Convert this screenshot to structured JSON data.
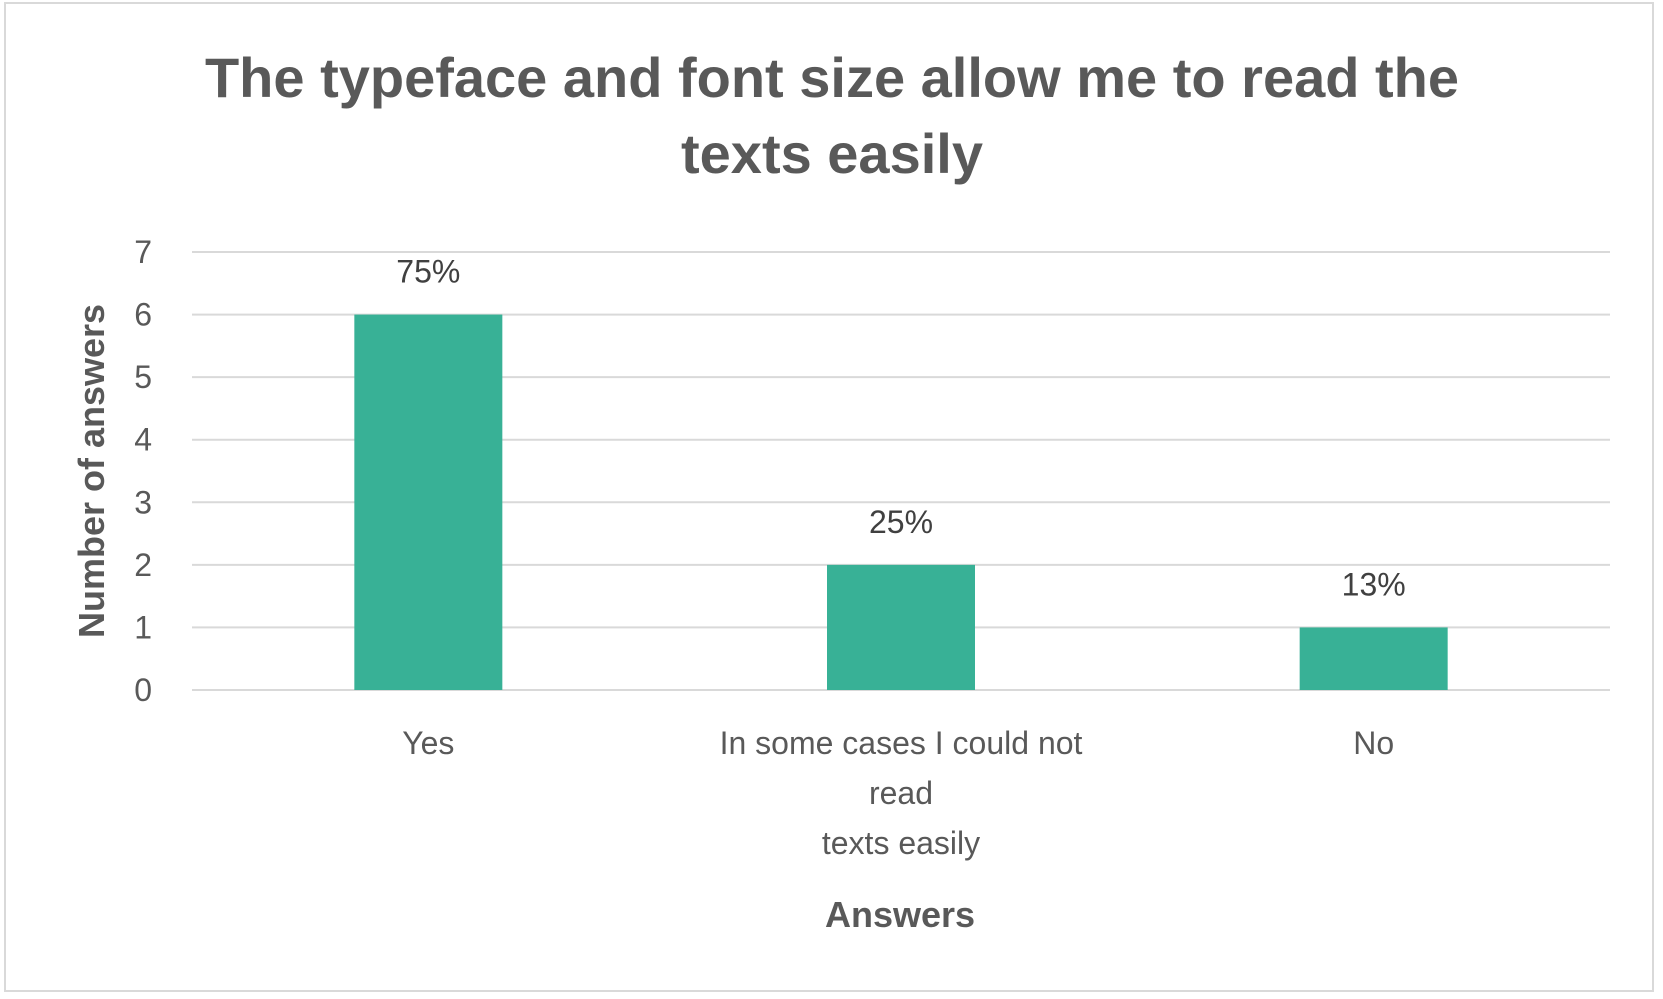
{
  "chart_data": {
    "type": "bar",
    "title": "The typeface and font size allow me to read the texts easily",
    "title_lines": [
      "The typeface and font size allow me to read the",
      "texts easily"
    ],
    "xlabel": "Answers",
    "ylabel": "Number of answers",
    "categories": [
      "Yes",
      "In some cases I could not read texts easily",
      "No"
    ],
    "category_lines": [
      [
        "Yes"
      ],
      [
        "In some cases I could not",
        "read",
        "texts easily"
      ],
      [
        "No"
      ]
    ],
    "values": [
      6,
      2,
      1
    ],
    "data_labels": [
      "75%",
      "25%",
      "13%"
    ],
    "ylim": [
      0,
      7
    ],
    "yticks": [
      0,
      1,
      2,
      3,
      4,
      5,
      6,
      7
    ],
    "grid": true,
    "legend": "none",
    "bar_color": "#38b196",
    "grid_color": "#d9d9d9"
  }
}
